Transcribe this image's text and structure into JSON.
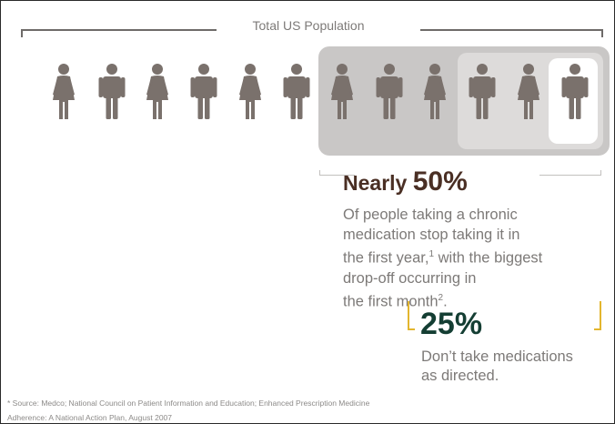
{
  "title": "Total US Population",
  "figures": [
    "female",
    "male",
    "female",
    "male",
    "female",
    "male",
    "female",
    "male",
    "female",
    "male",
    "female",
    "male"
  ],
  "colors": {
    "figure": "#7a716c",
    "dark_stat": "#4a2f24",
    "green_stat": "#143e33",
    "gold_bracket": "#e3b62e",
    "body_text": "#7d7a78"
  },
  "stat1": {
    "lead": "Nearly ",
    "value": "50%",
    "line1": "Of people taking a chronic",
    "line2": "medication stop taking it in",
    "line3a": "the first year,",
    "ref1": "1",
    "line3b": " with the biggest",
    "line4": "drop-off occurring in",
    "line5a": "the first month",
    "ref2": "2",
    "line5b": "."
  },
  "stat2": {
    "value": "25%",
    "line1": "Don’t take medications",
    "line2": "as directed."
  },
  "source": {
    "line1": "* Source: Medco; National Council on Patient Information and Education; Enhanced Prescription Medicine",
    "line2": "Adherence: A National Action Plan, August 2007"
  }
}
